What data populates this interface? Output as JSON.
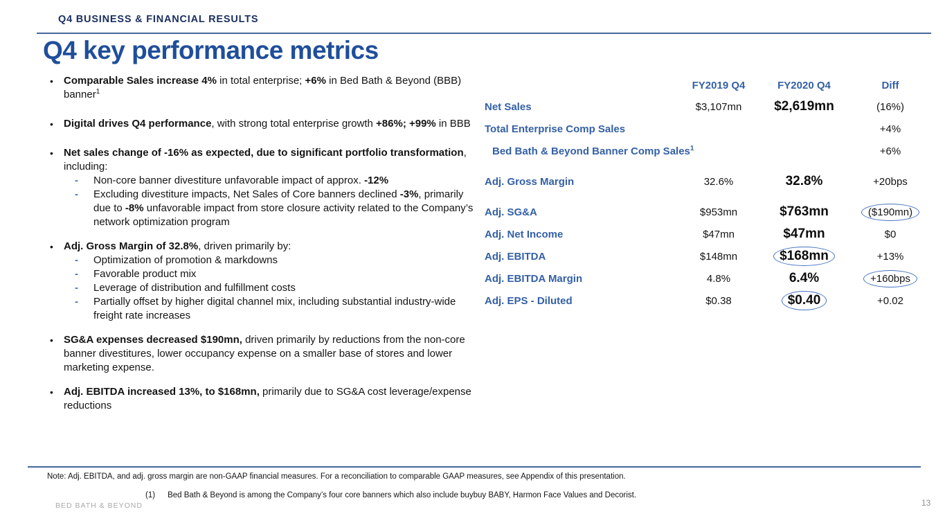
{
  "slide": {
    "eyebrow": "Q4 BUSINESS & FINANCIAL RESULTS",
    "title": "Q4 key performance metrics"
  },
  "colors": {
    "eyebrow_navy": "#1b3060",
    "title_blue": "#1f4e9b",
    "table_label_blue": "#3460a6",
    "rule_blue": "#46679c",
    "sub_dash_blue": "#4472c4",
    "circle_blue": "#4472c4",
    "logo_gray": "#a8a8a8"
  },
  "left": {
    "bullets": [
      {
        "segments": [
          {
            "t": "Comparable Sales increase 4%",
            "b": true
          },
          {
            "t": " in total enterprise; "
          },
          {
            "t": "+6%",
            "b": true
          },
          {
            "t": " in Bed Bath & Beyond (BBB) banner"
          },
          {
            "t": "1",
            "sup": true
          }
        ],
        "subs": []
      },
      {
        "segments": [
          {
            "t": "Digital drives Q4 performance",
            "b": true
          },
          {
            "t": ", with strong total enterprise growth "
          },
          {
            "t": "+86%; +99%",
            "b": true
          },
          {
            "t": " in BBB"
          }
        ],
        "subs": []
      },
      {
        "segments": [
          {
            "t": "Net sales change of -16% as expected, due to significant portfolio transformation",
            "b": true
          },
          {
            "t": ", including:"
          }
        ],
        "subs": [
          {
            "segments": [
              {
                "t": "Non-core banner divestiture unfavorable impact of approx. "
              },
              {
                "t": "-12%",
                "b": true
              }
            ]
          },
          {
            "segments": [
              {
                "t": "Excluding divestiture impacts, Net Sales of Core banners declined "
              },
              {
                "t": "-3%",
                "b": true
              },
              {
                "t": ", primarily due to "
              },
              {
                "t": "-8%",
                "b": true
              },
              {
                "t": " unfavorable impact from store closure activity related to the Company’s network optimization program"
              }
            ]
          }
        ]
      },
      {
        "segments": [
          {
            "t": "Adj. Gross Margin of 32.8%",
            "b": true
          },
          {
            "t": ", driven primarily by:"
          }
        ],
        "subs": [
          {
            "segments": [
              {
                "t": "Optimization of promotion & markdowns"
              }
            ]
          },
          {
            "segments": [
              {
                "t": "Favorable product mix"
              }
            ]
          },
          {
            "segments": [
              {
                "t": "Leverage of distribution and fulfillment costs"
              }
            ]
          },
          {
            "segments": [
              {
                "t": "Partially offset by higher digital channel mix, including substantial industry-wide freight rate increases"
              }
            ]
          }
        ]
      },
      {
        "segments": [
          {
            "t": "SG&A expenses decreased $190mn,",
            "b": true
          },
          {
            "t": " driven primarily by reductions from the non-core banner divestitures, lower occupancy expense on a smaller base of stores and lower marketing expense."
          }
        ],
        "subs": []
      },
      {
        "segments": [
          {
            "t": "Adj. EBITDA increased 13%, to $168mn,",
            "b": true
          },
          {
            "t": " primarily due to SG&A cost leverage/expense reductions"
          }
        ],
        "subs": []
      }
    ]
  },
  "table": {
    "headers": {
      "col_2019": "FY2019 Q4",
      "col_2020": "FY2020 Q4",
      "col_diff": "Diff"
    },
    "rows": [
      {
        "label": "Net Sales",
        "fy2019": "$3,107mn",
        "fy2020": "$2,619mn",
        "diff": "(16%)"
      },
      {
        "label": "Total Enterprise Comp Sales",
        "fy2019": "",
        "fy2020": "",
        "diff": "+4%"
      },
      {
        "label": "Bed Bath & Beyond Banner Comp Sales",
        "label_sup": "1",
        "fy2019": "",
        "fy2020": "",
        "diff": "+6%"
      },
      {
        "label": "Adj. Gross Margin",
        "fy2019": "32.6%",
        "fy2020": "32.8%",
        "diff": "+20bps"
      },
      {
        "label": "Adj. SG&A",
        "fy2019": "$953mn",
        "fy2020": "$763mn",
        "diff": "($190mn)",
        "circled": "diff"
      },
      {
        "label": "Adj. Net Income",
        "fy2019": "$47mn",
        "fy2020": "$47mn",
        "diff": "$0"
      },
      {
        "label": "Adj. EBITDA",
        "fy2019": "$148mn",
        "fy2020": "$168mn",
        "diff": "+13%",
        "circled": "fy2020"
      },
      {
        "label": "Adj. EBITDA Margin",
        "fy2019": "4.8%",
        "fy2020": "6.4%",
        "diff": "+160bps",
        "circled": "diff"
      },
      {
        "label": "Adj. EPS - Diluted",
        "fy2019": "$0.38",
        "fy2020": "$0.40",
        "diff": "+0.02",
        "circled": "fy2020"
      }
    ]
  },
  "footer": {
    "note": "Note: Adj. EBITDA, and adj. gross margin are non-GAAP financial measures.  For a reconciliation to comparable GAAP measures, see Appendix of this presentation.",
    "footnote_num": "(1)",
    "footnote_text": "Bed Bath & Beyond is among the Company’s four core banners which also include buybuy BABY, Harmon Face Values and Decorist.",
    "logo": "BED BATH & BEYOND",
    "page_number": "13"
  }
}
